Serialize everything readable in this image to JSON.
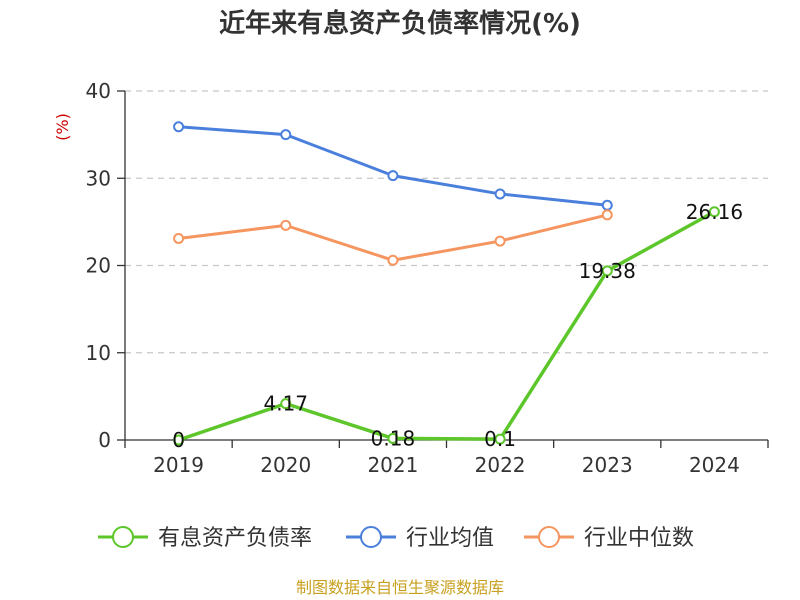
{
  "chart_data": {
    "type": "line",
    "title": "近年来有息资产负债率情况(%)",
    "ylabel": "(%)",
    "xlabel": "",
    "categories": [
      "2019",
      "2020",
      "2021",
      "2022",
      "2023",
      "2024"
    ],
    "ylim": [
      0,
      40
    ],
    "yticks": [
      "0",
      "10",
      "20",
      "30",
      "40"
    ],
    "grid": true,
    "legend_position": "bottom",
    "series": [
      {
        "name": "有息资产负债率",
        "color": "#5cc62a",
        "values": [
          0,
          4.17,
          0.18,
          0.1,
          19.38,
          26.16
        ],
        "labels": [
          "0",
          "4.17",
          "0.18",
          "0.1",
          "19.38",
          "26.16"
        ]
      },
      {
        "name": "行业均值",
        "color": "#4a7fdc",
        "values": [
          35.9,
          35.0,
          30.3,
          28.2,
          26.9,
          null
        ]
      },
      {
        "name": "行业中位数",
        "color": "#f59560",
        "values": [
          23.1,
          24.6,
          20.6,
          22.8,
          25.8,
          null
        ]
      }
    ],
    "source": "制图数据来自恒生聚源数据库"
  }
}
